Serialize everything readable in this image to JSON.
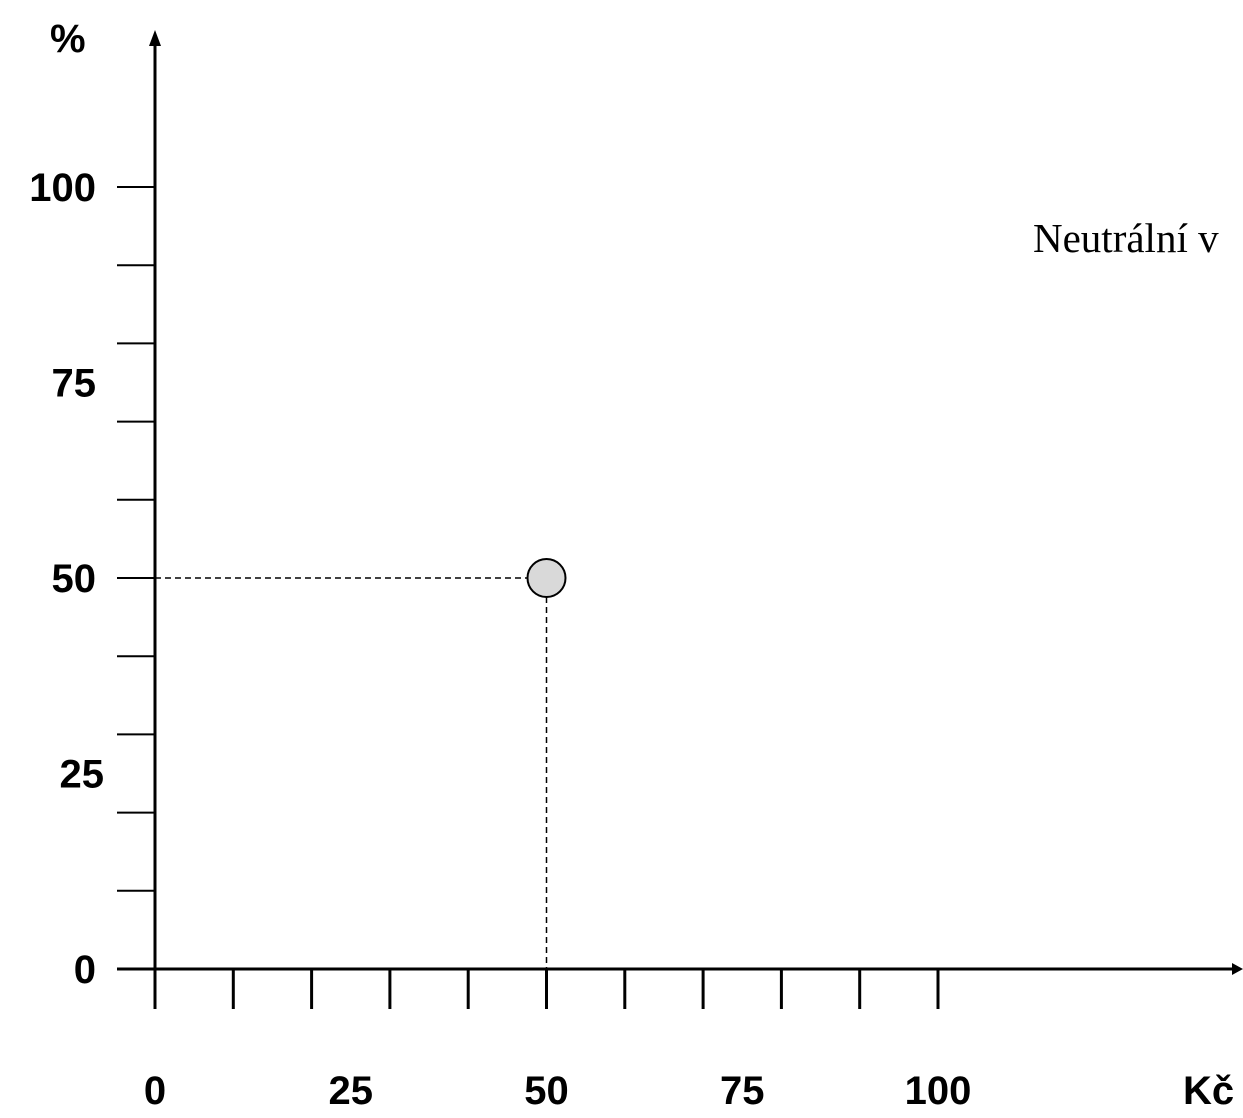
{
  "chart_data": {
    "type": "scatter",
    "title": "",
    "xlabel": "Kč",
    "ylabel": "%",
    "xlim": [
      0,
      100
    ],
    "ylim": [
      0,
      100
    ],
    "x_ticks": [
      0,
      25,
      50,
      75,
      100
    ],
    "x_minor_step": 10,
    "y_ticks": [
      0,
      25,
      50,
      75,
      100
    ],
    "y_minor_step": 10,
    "grid": false,
    "points": [
      {
        "x": 50,
        "y": 50
      }
    ],
    "guide_lines": "dashed lines from point to both axes",
    "annotation": "Neutrální v",
    "colors": {
      "axis": "#000000",
      "point_fill": "#d9d9d9",
      "point_stroke": "#000000",
      "background": "#ffffff"
    }
  }
}
